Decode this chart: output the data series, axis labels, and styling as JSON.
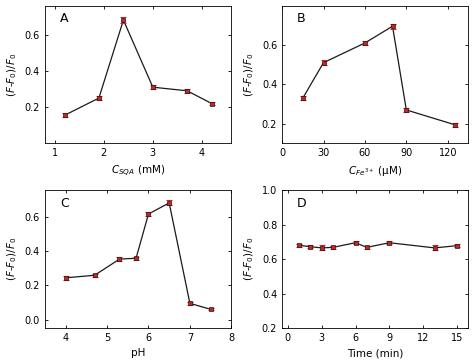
{
  "A": {
    "x": [
      1.2,
      1.9,
      2.4,
      3.0,
      3.7,
      4.2
    ],
    "y": [
      0.155,
      0.25,
      0.68,
      0.31,
      0.29,
      0.22
    ],
    "yerr": [
      0.01,
      0.01,
      0.015,
      0.01,
      0.01,
      0.01
    ],
    "xlabel": "$C_{SQA}$ (mM)",
    "ylabel": "$(F$-$F_0)/F_0$",
    "xlim": [
      0.8,
      4.6
    ],
    "ylim": [
      0.0,
      0.76
    ],
    "yticks": [
      0.2,
      0.4,
      0.6
    ],
    "label": "A"
  },
  "B": {
    "x": [
      15,
      30,
      60,
      80,
      90,
      125
    ],
    "y": [
      0.33,
      0.51,
      0.61,
      0.695,
      0.27,
      0.195
    ],
    "yerr": [
      0.01,
      0.012,
      0.01,
      0.012,
      0.01,
      0.01
    ],
    "xlabel": "$C_{Fe^{3+}}$ (μM)",
    "ylabel": "$(F$-$F_0)/F_0$",
    "xlim": [
      0,
      135
    ],
    "ylim": [
      0.1,
      0.8
    ],
    "yticks": [
      0.2,
      0.4,
      0.6
    ],
    "xticks": [
      0,
      30,
      60,
      90,
      120
    ],
    "label": "B"
  },
  "C": {
    "x": [
      4.0,
      4.7,
      5.3,
      5.7,
      6.0,
      6.5,
      7.0,
      7.5
    ],
    "y": [
      0.245,
      0.26,
      0.355,
      0.36,
      0.62,
      0.685,
      0.095,
      0.06
    ],
    "yerr": [
      0.01,
      0.01,
      0.01,
      0.01,
      0.012,
      0.015,
      0.008,
      0.007
    ],
    "xlabel": "pH",
    "ylabel": "$(F$-$F_0)/F_0$",
    "xlim": [
      3.5,
      8.0
    ],
    "ylim": [
      -0.05,
      0.76
    ],
    "yticks": [
      0.0,
      0.2,
      0.4,
      0.6
    ],
    "xticks": [
      4,
      5,
      6,
      7,
      8
    ],
    "label": "C"
  },
  "D": {
    "x": [
      1,
      2,
      3,
      4,
      6,
      7,
      9,
      13,
      15
    ],
    "y": [
      0.68,
      0.672,
      0.665,
      0.668,
      0.695,
      0.668,
      0.695,
      0.665,
      0.678
    ],
    "yerr": [
      0.008,
      0.01,
      0.015,
      0.01,
      0.008,
      0.01,
      0.008,
      0.015,
      0.01
    ],
    "xlabel": "Time (min)",
    "ylabel": "$(F$-$F_0)/F_0$",
    "xlim": [
      -0.5,
      16
    ],
    "ylim": [
      0.2,
      1.0
    ],
    "yticks": [
      0.2,
      0.4,
      0.6,
      0.8,
      1.0
    ],
    "xticks": [
      0,
      3,
      6,
      9,
      12,
      15
    ],
    "label": "D"
  },
  "line_color": "#1a1a1a",
  "marker_face": "#cc2222",
  "marker_edge": "#1a1a1a",
  "marker": "s",
  "markersize": 3.5,
  "linewidth": 0.9,
  "capsize": 2,
  "elinewidth": 0.8,
  "fontsize_label": 7.5,
  "fontsize_tick": 7,
  "fontsize_panel": 9
}
